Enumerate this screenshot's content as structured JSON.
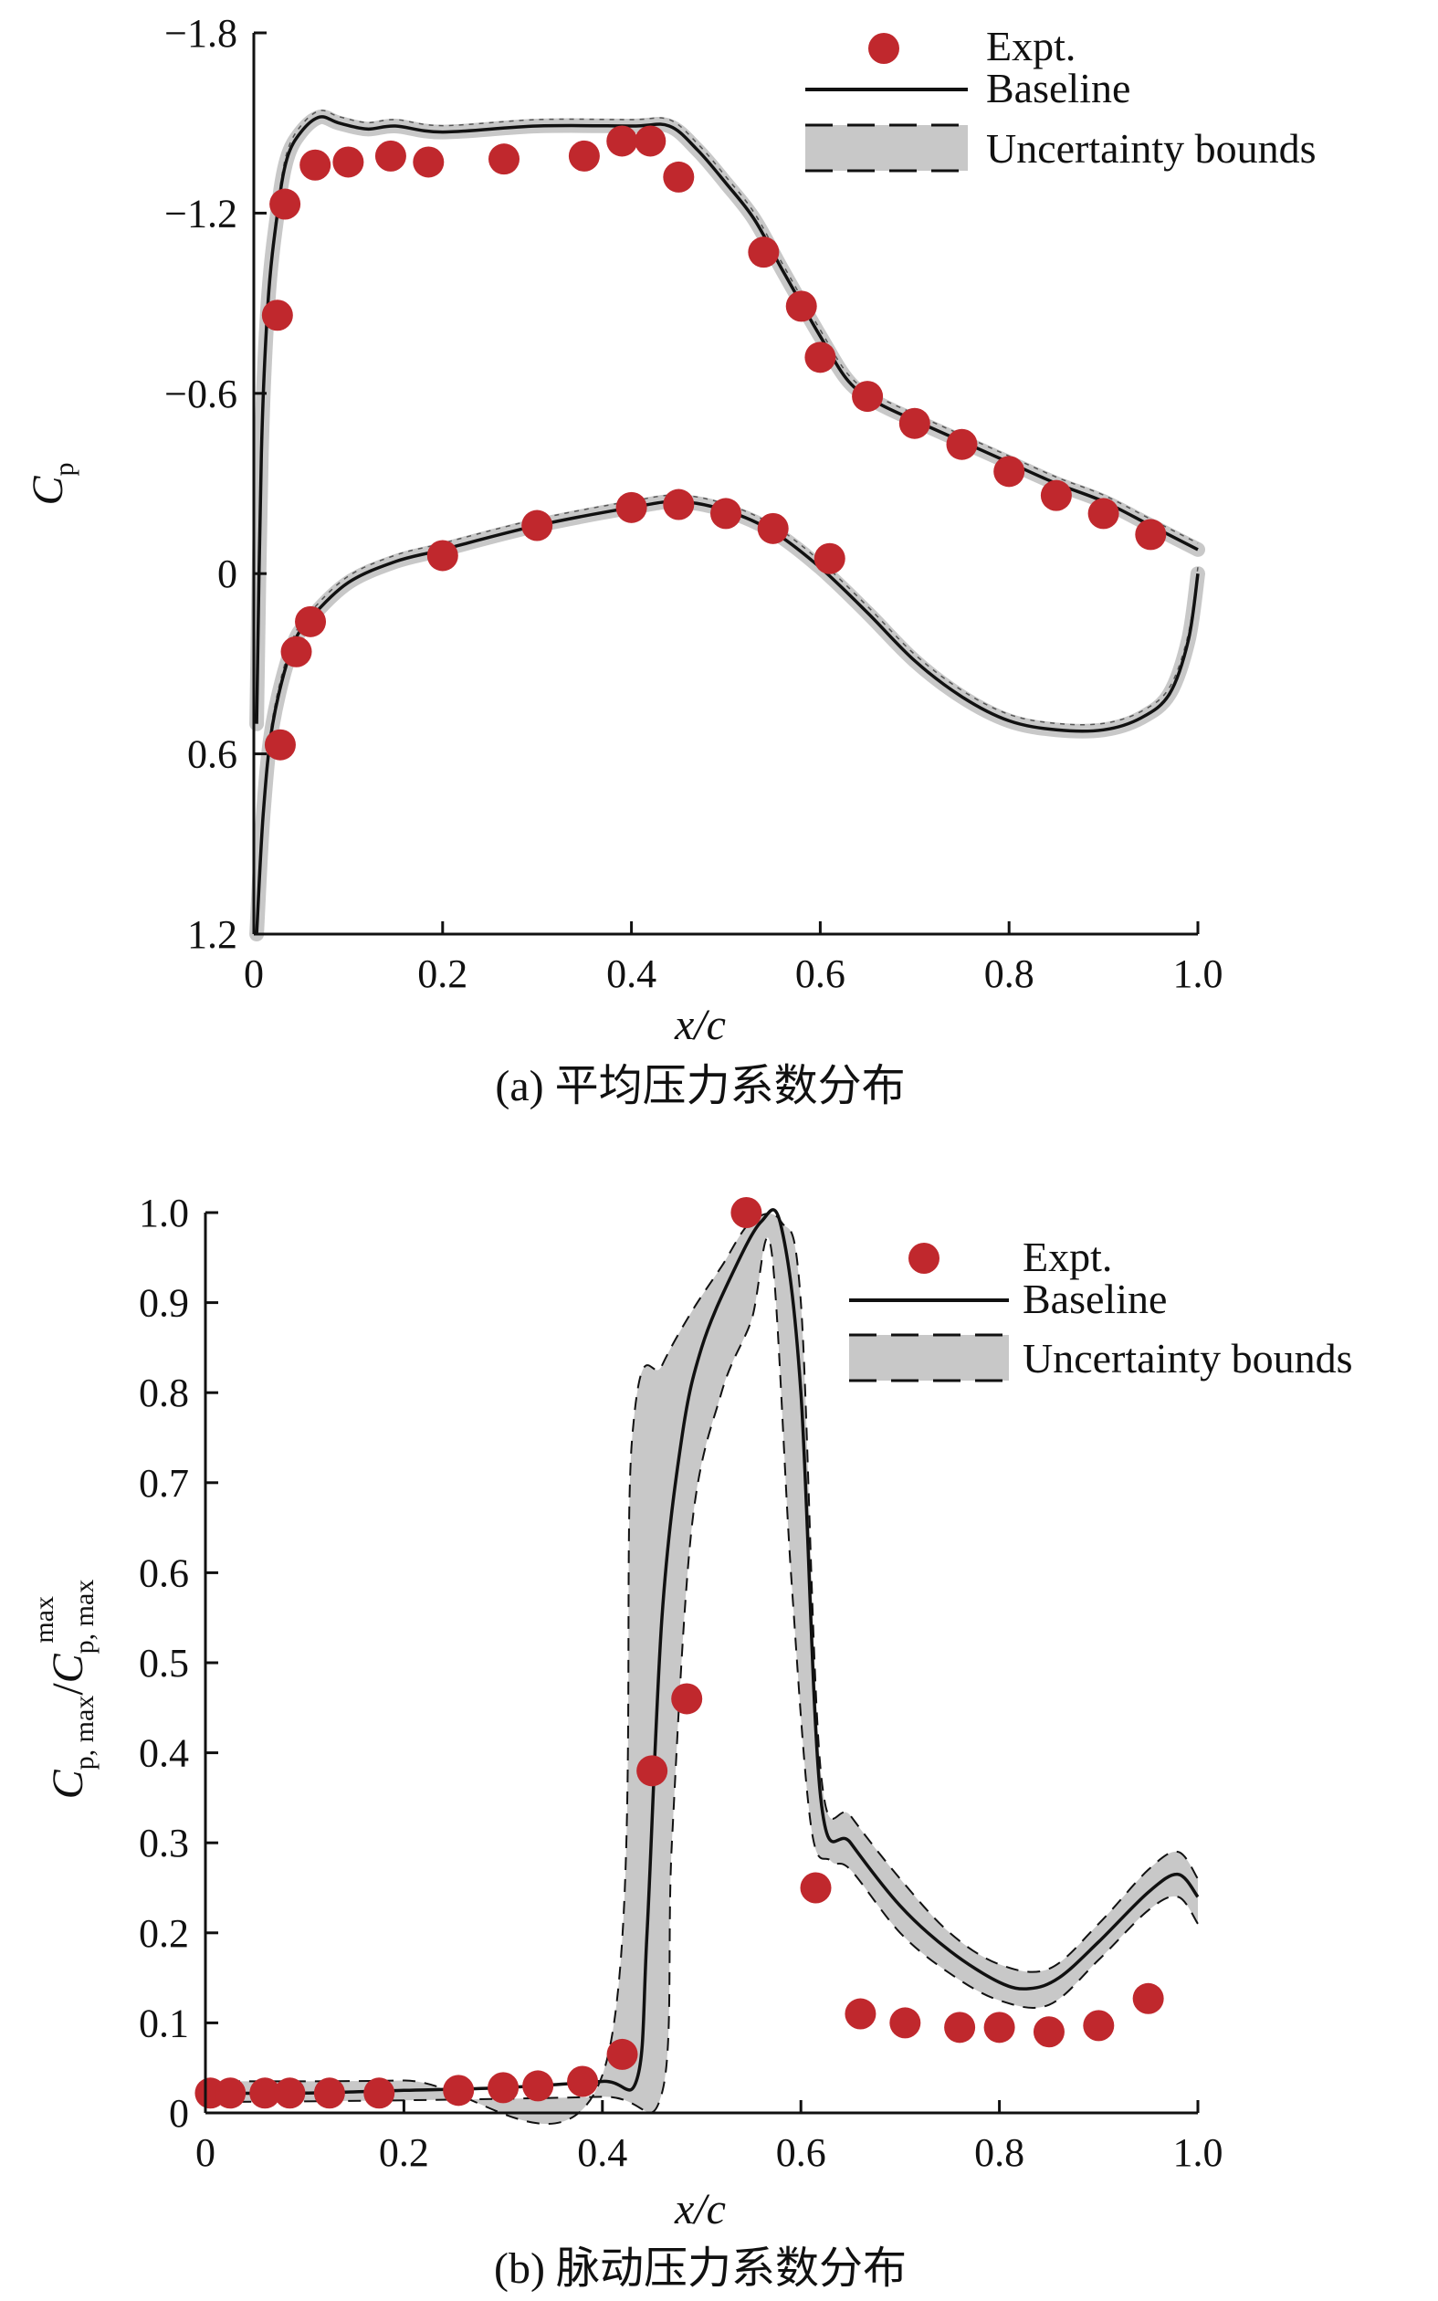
{
  "figure": {
    "caption_a": "(a) 平均压力系数分布",
    "caption_b": "(b) 脉动压力系数分布"
  },
  "chart_data": [
    {
      "type": "line",
      "id": "a",
      "title": "",
      "xlabel": "x/c",
      "ylabel": "C_p",
      "ylabel_main": "C",
      "ylabel_sub": "p",
      "xlim": [
        0,
        1.0
      ],
      "ylim": [
        1.2,
        -1.8
      ],
      "y_inverted": true,
      "xticks": [
        0,
        0.2,
        0.4,
        0.6,
        0.8,
        1.0
      ],
      "xtick_labels": [
        "0",
        "0.2",
        "0.4",
        "0.6",
        "0.8",
        "1.0"
      ],
      "yticks": [
        -1.8,
        -1.2,
        -0.6,
        0,
        0.6,
        1.2
      ],
      "ytick_labels": [
        "−1.8",
        "−1.2",
        "−0.6",
        "0",
        "0.6",
        "1.2"
      ],
      "legend": {
        "position": "top-right",
        "entries": [
          "Expt.",
          "Baseline",
          "Uncertainty bounds"
        ]
      },
      "colors": {
        "expt": "#c0282d",
        "baseline": "#111111",
        "band": "#c8c8c8"
      },
      "series": [
        {
          "name": "Expt.",
          "kind": "scatter",
          "x": [
            0.025,
            0.028,
            0.033,
            0.045,
            0.06,
            0.065,
            0.1,
            0.145,
            0.185,
            0.2,
            0.265,
            0.3,
            0.35,
            0.39,
            0.4,
            0.42,
            0.45,
            0.45,
            0.5,
            0.54,
            0.55,
            0.58,
            0.6,
            0.61,
            0.65,
            0.7,
            0.75,
            0.8,
            0.85,
            0.9,
            0.95
          ],
          "y": [
            -0.86,
            0.57,
            -1.23,
            0.26,
            0.16,
            -1.36,
            -1.37,
            -1.39,
            -1.37,
            -0.06,
            -1.38,
            -0.16,
            -1.39,
            -1.44,
            -0.22,
            -1.44,
            -1.32,
            -0.23,
            -0.2,
            -1.07,
            -0.15,
            -0.89,
            -0.72,
            -0.05,
            -0.59,
            -0.5,
            -0.43,
            -0.34,
            -0.26,
            -0.2,
            -0.13
          ]
        },
        {
          "name": "Baseline (suction side)",
          "kind": "line",
          "x": [
            0.003,
            0.008,
            0.015,
            0.025,
            0.035,
            0.05,
            0.07,
            0.09,
            0.12,
            0.15,
            0.2,
            0.3,
            0.4,
            0.44,
            0.47,
            0.5,
            0.53,
            0.56,
            0.6,
            0.63,
            0.66,
            0.7,
            0.75,
            0.8,
            0.85,
            0.9,
            0.95,
            1.0
          ],
          "y": [
            0.5,
            -0.4,
            -0.9,
            -1.2,
            -1.38,
            -1.47,
            -1.52,
            -1.5,
            -1.48,
            -1.49,
            -1.47,
            -1.49,
            -1.49,
            -1.49,
            -1.41,
            -1.3,
            -1.18,
            -1.01,
            -0.79,
            -0.64,
            -0.57,
            -0.51,
            -0.44,
            -0.37,
            -0.3,
            -0.24,
            -0.16,
            -0.08
          ]
        },
        {
          "name": "Baseline (pressure side)",
          "kind": "line",
          "x": [
            0.003,
            0.01,
            0.02,
            0.04,
            0.06,
            0.1,
            0.15,
            0.2,
            0.3,
            0.4,
            0.45,
            0.5,
            0.55,
            0.6,
            0.65,
            0.7,
            0.75,
            0.8,
            0.85,
            0.9,
            0.94,
            0.97,
            0.99,
            1.0
          ],
          "y": [
            1.2,
            0.8,
            0.5,
            0.25,
            0.15,
            0.03,
            -0.04,
            -0.08,
            -0.16,
            -0.22,
            -0.24,
            -0.21,
            -0.14,
            -0.02,
            0.13,
            0.29,
            0.41,
            0.49,
            0.52,
            0.52,
            0.48,
            0.4,
            0.22,
            0.0
          ]
        }
      ]
    },
    {
      "type": "line",
      "id": "b",
      "title": "",
      "xlabel": "x/c",
      "ylabel": "C_p,max/C_p,max^max",
      "ylabel_parts": {
        "c1": "C",
        "s1": "p, max",
        "slash": "/",
        "c2": "C",
        "s2": "p, max",
        "sup": "max"
      },
      "xlim": [
        0,
        1.0
      ],
      "ylim": [
        0,
        1.0
      ],
      "xticks": [
        0,
        0.2,
        0.4,
        0.6,
        0.8,
        1.0
      ],
      "xtick_labels": [
        "0",
        "0.2",
        "0.4",
        "0.6",
        "0.8",
        "1.0"
      ],
      "yticks": [
        0,
        0.1,
        0.2,
        0.3,
        0.4,
        0.5,
        0.6,
        0.7,
        0.8,
        0.9,
        1.0
      ],
      "ytick_labels": [
        "0",
        "0.1",
        "0.2",
        "0.3",
        "0.4",
        "0.5",
        "0.6",
        "0.7",
        "0.8",
        "0.9",
        "1.0"
      ],
      "legend": {
        "position": "top-right",
        "entries": [
          "Expt.",
          "Baseline",
          "Uncertainty bounds"
        ]
      },
      "colors": {
        "expt": "#c0282d",
        "baseline": "#111111",
        "band": "#c8c8c8"
      },
      "series": [
        {
          "name": "Expt.",
          "kind": "scatter",
          "x": [
            0.005,
            0.025,
            0.06,
            0.085,
            0.125,
            0.175,
            0.255,
            0.3,
            0.335,
            0.38,
            0.42,
            0.45,
            0.485,
            0.545,
            0.615,
            0.66,
            0.705,
            0.76,
            0.8,
            0.85,
            0.9,
            0.95
          ],
          "y": [
            0.022,
            0.022,
            0.022,
            0.022,
            0.022,
            0.022,
            0.025,
            0.028,
            0.03,
            0.035,
            0.065,
            0.38,
            0.46,
            1.0,
            0.25,
            0.11,
            0.1,
            0.095,
            0.095,
            0.09,
            0.097,
            0.127
          ]
        },
        {
          "name": "Baseline",
          "kind": "line",
          "x": [
            0,
            0.1,
            0.2,
            0.3,
            0.4,
            0.435,
            0.445,
            0.46,
            0.48,
            0.5,
            0.53,
            0.56,
            0.58,
            0.6,
            0.62,
            0.65,
            0.7,
            0.75,
            0.8,
            0.83,
            0.86,
            0.9,
            0.95,
            0.98,
            1.0
          ],
          "y": [
            0.022,
            0.022,
            0.025,
            0.028,
            0.035,
            0.038,
            0.2,
            0.55,
            0.75,
            0.85,
            0.93,
            0.99,
            0.985,
            0.8,
            0.35,
            0.3,
            0.23,
            0.18,
            0.145,
            0.138,
            0.15,
            0.19,
            0.245,
            0.265,
            0.24
          ]
        },
        {
          "name": "Uncertainty bounds (upper)",
          "kind": "band",
          "x": [
            0,
            0.2,
            0.4,
            0.43,
            0.46,
            0.49,
            0.52,
            0.55,
            0.58,
            0.6,
            0.62,
            0.65,
            0.7,
            0.75,
            0.8,
            0.85,
            0.9,
            0.95,
            0.98,
            1.0
          ],
          "y": [
            0.035,
            0.036,
            0.042,
            0.75,
            0.83,
            0.89,
            0.94,
            0.99,
            0.99,
            0.9,
            0.38,
            0.33,
            0.26,
            0.2,
            0.165,
            0.16,
            0.21,
            0.27,
            0.29,
            0.26
          ]
        },
        {
          "name": "Uncertainty bounds (lower)",
          "kind": "band",
          "x": [
            0,
            0.2,
            0.4,
            0.46,
            0.47,
            0.49,
            0.52,
            0.55,
            0.57,
            0.59,
            0.61,
            0.63,
            0.65,
            0.7,
            0.75,
            0.8,
            0.85,
            0.9,
            0.95,
            0.98,
            1.0
          ],
          "y": [
            0.012,
            0.014,
            0.018,
            0.022,
            0.3,
            0.65,
            0.8,
            0.88,
            0.96,
            0.6,
            0.32,
            0.28,
            0.27,
            0.2,
            0.155,
            0.125,
            0.12,
            0.17,
            0.225,
            0.24,
            0.21
          ]
        }
      ]
    }
  ]
}
